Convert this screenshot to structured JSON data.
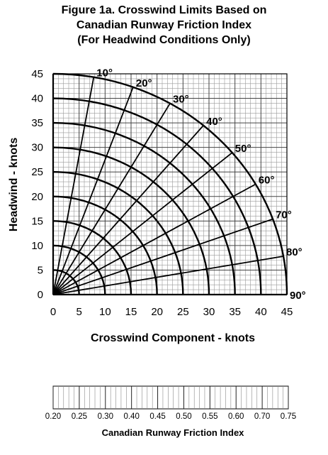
{
  "title_lines": [
    "Figure 1a. Crosswind Limits Based on",
    "Canadian Runway Friction Index",
    "(For Headwind Conditions Only)"
  ],
  "chart_data": {
    "type": "polar-nomogram",
    "xlabel": "Crosswind Component - knots",
    "ylabel": "Headwind - knots",
    "xlim": [
      0,
      45
    ],
    "ylim": [
      0,
      45
    ],
    "x_ticks": [
      "0",
      "5",
      "10",
      "15",
      "20",
      "25",
      "30",
      "35",
      "40",
      "45"
    ],
    "y_ticks": [
      "0",
      "5",
      "10",
      "15",
      "20",
      "25",
      "30",
      "35",
      "40",
      "45"
    ],
    "grid": true,
    "arc_radii_knots": [
      5,
      10,
      15,
      20,
      25,
      30,
      35,
      40,
      45
    ],
    "angle_degrees": [
      10,
      20,
      30,
      40,
      50,
      60,
      70,
      80,
      90
    ],
    "angle_labels": [
      "10°",
      "20°",
      "30°",
      "40°",
      "50°",
      "60°",
      "70°",
      "80°",
      "90°"
    ],
    "friction_scale": {
      "label": "Canadian Runway Friction Index",
      "tick_values": [
        0.2,
        0.25,
        0.3,
        0.4,
        0.45,
        0.5,
        0.55,
        0.6,
        0.7,
        0.75
      ],
      "tick_labels": [
        "0.20",
        "0.25",
        "0.30",
        "0.40",
        "0.45",
        "0.50",
        "0.55",
        "0.60",
        "0.70",
        "0.75"
      ]
    }
  }
}
